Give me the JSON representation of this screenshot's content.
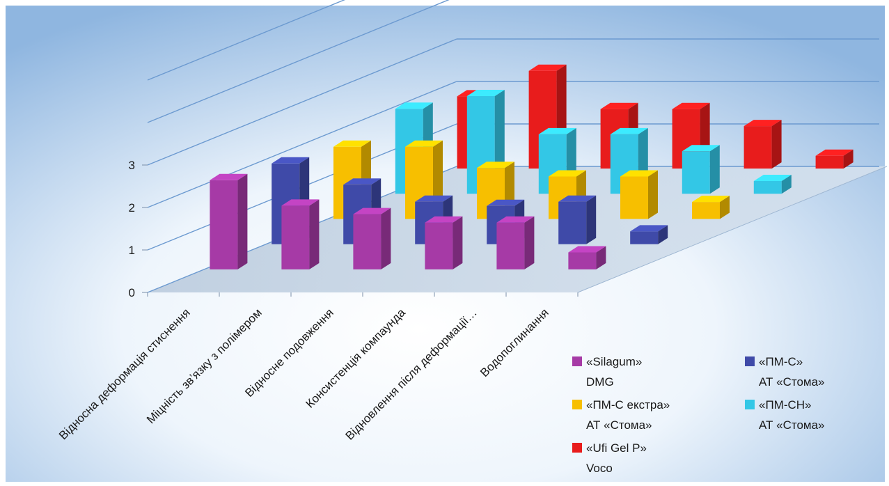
{
  "chart_data": {
    "type": "bar",
    "variant": "3d-grouped-depth",
    "title": "",
    "xlabel": "",
    "ylabel": "",
    "ylim": [
      0,
      3
    ],
    "yticks": [
      "0",
      "1",
      "2",
      "3"
    ],
    "categories": [
      "Відносна деформація стиснення",
      "Міцність зв’язку з полімером",
      "Відносне подовження",
      "Консистенція компаунда",
      "Відновлення після деформації…",
      "Водопоглинання"
    ],
    "series": [
      {
        "name": "«Silagum»",
        "name_line2": "DMG",
        "color": "#a63aa6",
        "values": [
          2.1,
          1.5,
          1.3,
          1.1,
          1.1,
          0.4
        ]
      },
      {
        "name": "«ПМ-С»",
        "name_line2": "АТ «Стома»",
        "color": "#3f4aa8",
        "values": [
          1.9,
          1.4,
          1.0,
          0.9,
          1.0,
          0.3
        ]
      },
      {
        "name": "«ПМ-С екстра»",
        "name_line2": "АТ «Стома»",
        "color": "#f7bf00",
        "values": [
          1.7,
          1.7,
          1.2,
          1.0,
          1.0,
          0.4
        ]
      },
      {
        "name": "«ПМ-СН»",
        "name_line2": "АТ «Стома»",
        "color": "#33c7e6",
        "values": [
          2.0,
          2.3,
          1.4,
          1.4,
          1.0,
          0.3
        ]
      },
      {
        "name": "«Ufi Gel P»",
        "name_line2": "Voco",
        "color": "#e81c1c",
        "values": [
          1.7,
          2.3,
          1.4,
          1.4,
          1.0,
          0.3
        ]
      }
    ],
    "grid": true,
    "legend_position": "bottom-right"
  }
}
